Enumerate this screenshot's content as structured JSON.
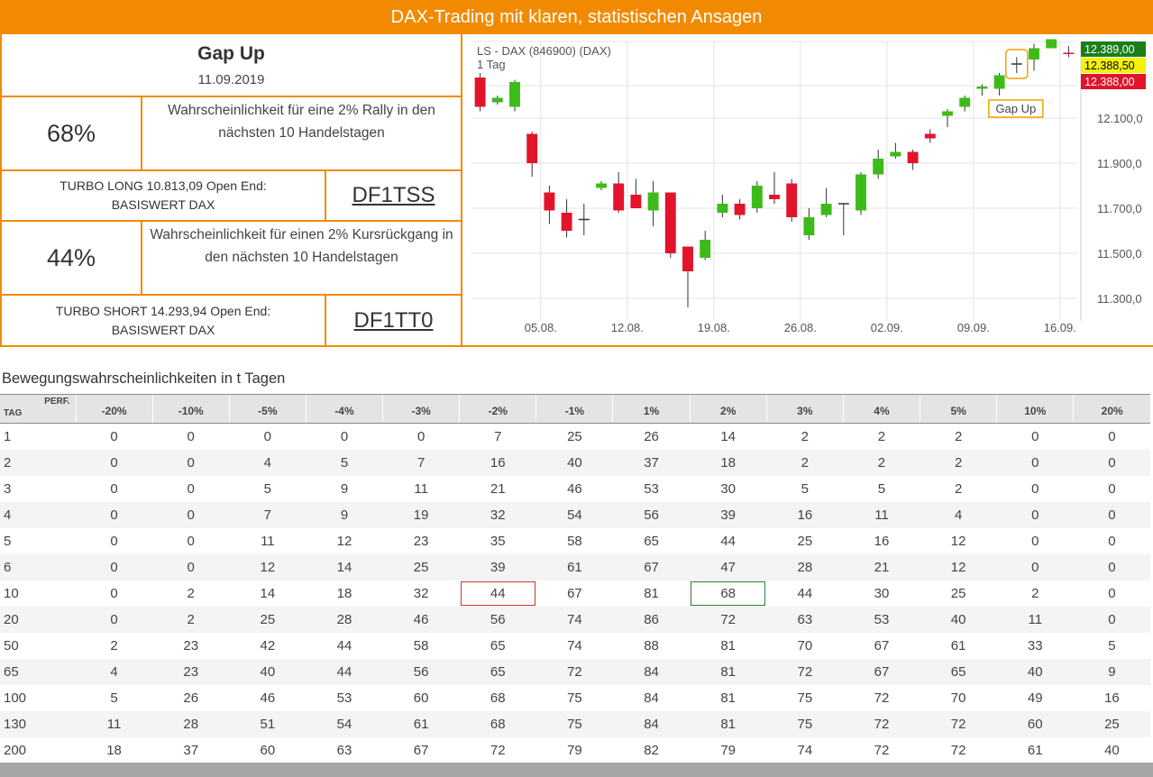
{
  "banner": {
    "title": "DAX-Trading mit klaren, statistischen Ansagen"
  },
  "summary": {
    "title": "Gap Up",
    "date": "11.09.2019",
    "rally": {
      "pct": "68%",
      "text": "Wahrscheinlichkeit für eine 2% Rally in den nächsten 10 Handelstagen"
    },
    "long": {
      "line1": "TURBO LONG 10.813,09 Open End:",
      "line2": "BASISWERT DAX",
      "code": "DF1TSS"
    },
    "decline": {
      "pct": "44%",
      "text": "Wahrscheinlichkeit für einen 2% Kursrückgang in den nächsten 10 Handelstagen"
    },
    "short": {
      "line1": "TURBO SHORT 14.293,94 Open End:",
      "line2": "BASISWERT DAX",
      "code": "DF1TT0"
    }
  },
  "chart_data": {
    "type": "candlestick",
    "title": "LS - DAX (846900) (DAX)",
    "subtitle": "1 Tag",
    "ylim": [
      11200,
      12440
    ],
    "y_ticks": [
      "12.100,0",
      "11.900,0",
      "11.700,0",
      "11.500,0",
      "11.300,0"
    ],
    "y_tick_values": [
      12100,
      11900,
      11700,
      11500,
      11300
    ],
    "x_ticks": [
      "05.08.",
      "12.08.",
      "19.08.",
      "26.08.",
      "02.09.",
      "09.09.",
      "16.09."
    ],
    "x_tick_index": [
      3.5,
      8.5,
      13.5,
      18.5,
      23.5,
      28.5,
      33.5
    ],
    "price_labels": [
      {
        "text": "12.389,00",
        "value": 12389,
        "bg": "#1a7f1a",
        "fg": "#ffffff"
      },
      {
        "text": "12.388,50",
        "value": 12388.5,
        "bg": "#f2f20a",
        "fg": "#000000"
      },
      {
        "text": "12.388,00",
        "value": 12388,
        "bg": "#e2142c",
        "fg": "#ffffff"
      }
    ],
    "annotation": {
      "text": "Gap Up",
      "index": 31
    },
    "colors": {
      "up": "#3dbb1a",
      "down": "#e2142c",
      "neutral": "#333333"
    },
    "candles": [
      {
        "o": 12280,
        "h": 12300,
        "l": 12130,
        "c": 12150
      },
      {
        "o": 12170,
        "h": 12200,
        "l": 12160,
        "c": 12190
      },
      {
        "o": 12150,
        "h": 12270,
        "l": 12130,
        "c": 12260
      },
      {
        "o": 12030,
        "h": 12040,
        "l": 11840,
        "c": 11900
      },
      {
        "o": 11770,
        "h": 11800,
        "l": 11630,
        "c": 11690
      },
      {
        "o": 11680,
        "h": 11740,
        "l": 11570,
        "c": 11600
      },
      {
        "o": 11650,
        "h": 11720,
        "l": 11580,
        "c": 11650
      },
      {
        "o": 11790,
        "h": 11820,
        "l": 11780,
        "c": 11810
      },
      {
        "o": 11810,
        "h": 11860,
        "l": 11680,
        "c": 11690
      },
      {
        "o": 11760,
        "h": 11830,
        "l": 11700,
        "c": 11700
      },
      {
        "o": 11690,
        "h": 11820,
        "l": 11620,
        "c": 11770
      },
      {
        "o": 11770,
        "h": 11770,
        "l": 11480,
        "c": 11500
      },
      {
        "o": 11530,
        "h": 11530,
        "l": 11260,
        "c": 11420
      },
      {
        "o": 11480,
        "h": 11600,
        "l": 11470,
        "c": 11560
      },
      {
        "o": 11680,
        "h": 11760,
        "l": 11660,
        "c": 11720
      },
      {
        "o": 11720,
        "h": 11740,
        "l": 11650,
        "c": 11670
      },
      {
        "o": 11700,
        "h": 11820,
        "l": 11680,
        "c": 11800
      },
      {
        "o": 11760,
        "h": 11860,
        "l": 11720,
        "c": 11740
      },
      {
        "o": 11810,
        "h": 11830,
        "l": 11640,
        "c": 11660
      },
      {
        "o": 11580,
        "h": 11700,
        "l": 11560,
        "c": 11660
      },
      {
        "o": 11670,
        "h": 11790,
        "l": 11660,
        "c": 11720
      },
      {
        "o": 11720,
        "h": 11720,
        "l": 11580,
        "c": 11720
      },
      {
        "o": 11690,
        "h": 11860,
        "l": 11670,
        "c": 11850
      },
      {
        "o": 11850,
        "h": 11960,
        "l": 11830,
        "c": 11920
      },
      {
        "o": 11930,
        "h": 11990,
        "l": 11920,
        "c": 11950
      },
      {
        "o": 11950,
        "h": 11960,
        "l": 11870,
        "c": 11900
      },
      {
        "o": 12030,
        "h": 12050,
        "l": 11990,
        "c": 12010
      },
      {
        "o": 12110,
        "h": 12140,
        "l": 12060,
        "c": 12130
      },
      {
        "o": 12150,
        "h": 12200,
        "l": 12130,
        "c": 12190
      },
      {
        "o": 12230,
        "h": 12250,
        "l": 12200,
        "c": 12240
      },
      {
        "o": 12230,
        "h": 12300,
        "l": 12200,
        "c": 12290
      },
      {
        "o": 12340,
        "h": 12370,
        "l": 12300,
        "c": 12340
      },
      {
        "o": 12360,
        "h": 12430,
        "l": 12310,
        "c": 12410
      },
      {
        "o": 12410,
        "h": 12440,
        "l": 12410,
        "c": 12450
      },
      {
        "o": 12390,
        "h": 12420,
        "l": 12370,
        "c": 12389
      }
    ]
  },
  "table": {
    "section_title": "Bewegungswahrscheinlichkeiten in t Tagen",
    "corner_perf": "PERF.",
    "corner_tag": "TAG",
    "headers": [
      "-20%",
      "-10%",
      "-5%",
      "-4%",
      "-3%",
      "-2%",
      "-1%",
      "1%",
      "2%",
      "3%",
      "4%",
      "5%",
      "10%",
      "20%"
    ],
    "rows": [
      {
        "tag": "1",
        "values": [
          "0",
          "0",
          "0",
          "0",
          "0",
          "7",
          "25",
          "26",
          "14",
          "2",
          "2",
          "2",
          "0",
          "0"
        ]
      },
      {
        "tag": "2",
        "values": [
          "0",
          "0",
          "4",
          "5",
          "7",
          "16",
          "40",
          "37",
          "18",
          "2",
          "2",
          "2",
          "0",
          "0"
        ]
      },
      {
        "tag": "3",
        "values": [
          "0",
          "0",
          "5",
          "9",
          "11",
          "21",
          "46",
          "53",
          "30",
          "5",
          "5",
          "2",
          "0",
          "0"
        ]
      },
      {
        "tag": "4",
        "values": [
          "0",
          "0",
          "7",
          "9",
          "19",
          "32",
          "54",
          "56",
          "39",
          "16",
          "11",
          "4",
          "0",
          "0"
        ]
      },
      {
        "tag": "5",
        "values": [
          "0",
          "0",
          "11",
          "12",
          "23",
          "35",
          "58",
          "65",
          "44",
          "25",
          "16",
          "12",
          "0",
          "0"
        ]
      },
      {
        "tag": "6",
        "values": [
          "0",
          "0",
          "12",
          "14",
          "25",
          "39",
          "61",
          "67",
          "47",
          "28",
          "21",
          "12",
          "0",
          "0"
        ]
      },
      {
        "tag": "10",
        "values": [
          "0",
          "2",
          "14",
          "18",
          "32",
          "44",
          "67",
          "81",
          "68",
          "44",
          "30",
          "25",
          "2",
          "0"
        ]
      },
      {
        "tag": "20",
        "values": [
          "0",
          "2",
          "25",
          "28",
          "46",
          "56",
          "74",
          "86",
          "72",
          "63",
          "53",
          "40",
          "11",
          "0"
        ]
      },
      {
        "tag": "50",
        "values": [
          "2",
          "23",
          "42",
          "44",
          "58",
          "65",
          "74",
          "88",
          "81",
          "70",
          "67",
          "61",
          "33",
          "5"
        ]
      },
      {
        "tag": "65",
        "values": [
          "4",
          "23",
          "40",
          "44",
          "56",
          "65",
          "72",
          "84",
          "81",
          "72",
          "67",
          "65",
          "40",
          "9"
        ]
      },
      {
        "tag": "100",
        "values": [
          "5",
          "26",
          "46",
          "53",
          "60",
          "68",
          "75",
          "84",
          "81",
          "75",
          "72",
          "70",
          "49",
          "16"
        ]
      },
      {
        "tag": "130",
        "values": [
          "11",
          "28",
          "51",
          "54",
          "61",
          "68",
          "75",
          "84",
          "81",
          "75",
          "72",
          "72",
          "60",
          "25"
        ]
      },
      {
        "tag": "200",
        "values": [
          "18",
          "37",
          "60",
          "63",
          "67",
          "72",
          "79",
          "82",
          "79",
          "74",
          "72",
          "72",
          "61",
          "40"
        ]
      }
    ],
    "highlights": [
      {
        "row": 6,
        "col": 5,
        "color": "red"
      },
      {
        "row": 6,
        "col": 8,
        "color": "green"
      }
    ]
  }
}
